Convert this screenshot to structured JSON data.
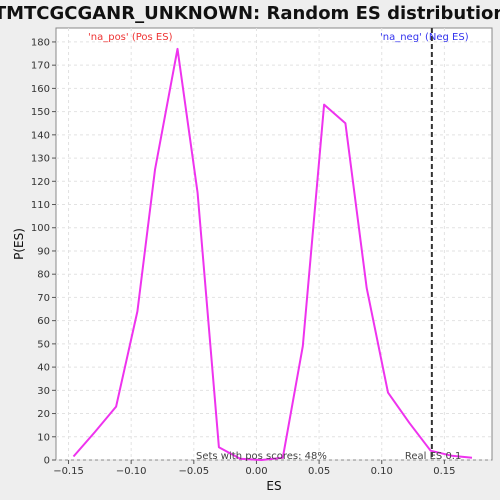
{
  "chart_data": {
    "type": "line",
    "title": "TMTCGCGANR_UNKNOWN: Random ES distribution",
    "xlabel": "ES",
    "ylabel": "P(ES)",
    "xlim": [
      -0.16,
      0.188
    ],
    "ylim": [
      0,
      186
    ],
    "xticks": [
      -0.15,
      -0.1,
      -0.05,
      0.0,
      0.05,
      0.1,
      0.15
    ],
    "xtick_labels": [
      "−0.15",
      "−0.10",
      "−0.05",
      "0.00",
      "0.05",
      "0.10",
      "0.15"
    ],
    "yticks": [
      0,
      10,
      20,
      30,
      40,
      50,
      60,
      70,
      80,
      90,
      100,
      110,
      120,
      130,
      140,
      150,
      160,
      170,
      180
    ],
    "grid": true,
    "series": [
      {
        "color": "#ee33ee",
        "x": [
          -0.146,
          -0.129,
          -0.112,
          -0.095,
          -0.081,
          -0.063,
          -0.047,
          -0.03,
          -0.013,
          0.004,
          0.021,
          0.037,
          0.054,
          0.071,
          0.088,
          0.105,
          0.122,
          0.139,
          0.156,
          0.172
        ],
        "y": [
          1.5,
          12,
          23,
          64,
          125,
          177,
          115,
          5.5,
          0.5,
          0,
          1,
          49,
          153,
          145,
          74,
          29,
          16,
          4,
          1.8,
          1
        ]
      }
    ],
    "real_es": {
      "x": 0.14,
      "label": "Real ES 0.1",
      "color": "#333333"
    },
    "legend": {
      "pos_label": "'na_pos' (Pos ES)",
      "pos_color": "#ee3333",
      "neg_label": "'na_neg' (Neg ES)",
      "neg_color": "#3333ee"
    },
    "annotation": "Sets with pos scores: 48%"
  }
}
